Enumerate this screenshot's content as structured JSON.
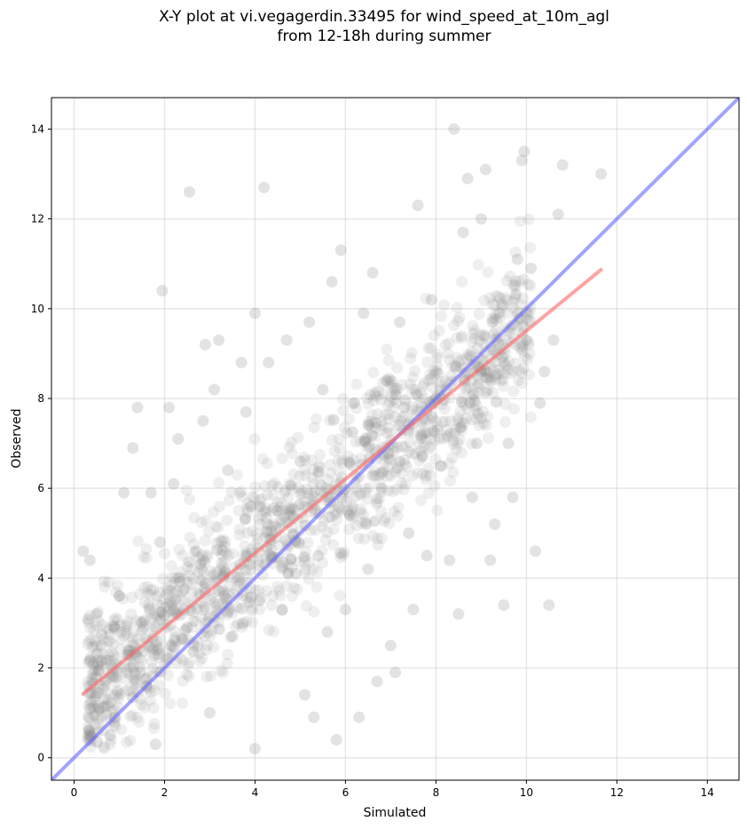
{
  "chart_data": {
    "type": "scatter",
    "title": "X-Y plot at vi.vegagerdin.33495 for wind_speed_at_10m_agl",
    "subtitle": "from 12-18h during summer",
    "xlabel": "Simulated",
    "ylabel": "Observed",
    "xlim": [
      -0.5,
      14.7
    ],
    "ylim": [
      -0.5,
      14.7
    ],
    "xticks": [
      "0",
      "2",
      "4",
      "6",
      "8",
      "10",
      "12",
      "14"
    ],
    "yticks": [
      "0",
      "2",
      "4",
      "6",
      "8",
      "10",
      "12",
      "14"
    ],
    "grid": true,
    "point_color": "#808080",
    "one_to_one_line": {
      "color": "#6666ff",
      "x": [
        -0.5,
        14.7
      ],
      "y": [
        -0.5,
        14.7
      ]
    },
    "regression_line": {
      "color": "#ff6666",
      "x": [
        0.2,
        11.65
      ],
      "y": [
        1.42,
        10.87
      ]
    },
    "points": [
      [
        0.2,
        4.6
      ],
      [
        0.35,
        4.4
      ],
      [
        0.5,
        3.2
      ],
      [
        0.6,
        2.5
      ],
      [
        0.7,
        1.7
      ],
      [
        0.8,
        0.5
      ],
      [
        0.9,
        0.9
      ],
      [
        1.0,
        3.6
      ],
      [
        1.1,
        5.9
      ],
      [
        1.2,
        2.4
      ],
      [
        1.3,
        6.9
      ],
      [
        1.4,
        7.8
      ],
      [
        1.5,
        3.0
      ],
      [
        1.6,
        1.6
      ],
      [
        1.7,
        5.9
      ],
      [
        1.8,
        0.3
      ],
      [
        1.9,
        4.8
      ],
      [
        1.95,
        10.4
      ],
      [
        2.1,
        7.8
      ],
      [
        2.2,
        6.1
      ],
      [
        2.3,
        7.1
      ],
      [
        2.5,
        2.9
      ],
      [
        2.55,
        12.6
      ],
      [
        2.7,
        4.6
      ],
      [
        2.85,
        7.5
      ],
      [
        2.9,
        9.2
      ],
      [
        3.0,
        1.0
      ],
      [
        3.1,
        8.2
      ],
      [
        3.2,
        9.3
      ],
      [
        3.4,
        6.4
      ],
      [
        3.5,
        2.7
      ],
      [
        3.7,
        8.8
      ],
      [
        3.8,
        7.7
      ],
      [
        3.9,
        5.6
      ],
      [
        4.0,
        9.9
      ],
      [
        4.0,
        0.2
      ],
      [
        4.1,
        3.5
      ],
      [
        4.2,
        12.7
      ],
      [
        4.3,
        8.8
      ],
      [
        4.5,
        5.5
      ],
      [
        4.6,
        3.3
      ],
      [
        4.7,
        9.3
      ],
      [
        4.9,
        4.1
      ],
      [
        5.0,
        6.6
      ],
      [
        5.1,
        1.4
      ],
      [
        5.2,
        9.7
      ],
      [
        5.3,
        0.9
      ],
      [
        5.4,
        4.5
      ],
      [
        5.5,
        8.2
      ],
      [
        5.6,
        2.8
      ],
      [
        5.7,
        10.6
      ],
      [
        5.8,
        0.4
      ],
      [
        5.9,
        11.3
      ],
      [
        6.0,
        3.3
      ],
      [
        6.1,
        5.4
      ],
      [
        6.2,
        7.9
      ],
      [
        6.3,
        0.9
      ],
      [
        6.4,
        9.9
      ],
      [
        6.5,
        4.2
      ],
      [
        6.6,
        10.8
      ],
      [
        6.7,
        1.7
      ],
      [
        6.8,
        6.0
      ],
      [
        6.9,
        8.4
      ],
      [
        7.0,
        2.5
      ],
      [
        7.1,
        1.9
      ],
      [
        7.2,
        9.7
      ],
      [
        7.3,
        7.8
      ],
      [
        7.4,
        5.0
      ],
      [
        7.5,
        3.3
      ],
      [
        7.6,
        12.3
      ],
      [
        7.7,
        6.7
      ],
      [
        7.8,
        4.5
      ],
      [
        7.9,
        10.2
      ],
      [
        8.0,
        8.0
      ],
      [
        8.1,
        6.5
      ],
      [
        8.3,
        4.4
      ],
      [
        8.4,
        14.0
      ],
      [
        8.5,
        3.2
      ],
      [
        8.6,
        11.7
      ],
      [
        8.7,
        12.9
      ],
      [
        8.8,
        5.8
      ],
      [
        8.9,
        7.0
      ],
      [
        9.0,
        12.0
      ],
      [
        9.1,
        13.1
      ],
      [
        9.2,
        4.4
      ],
      [
        9.3,
        5.2
      ],
      [
        9.4,
        9.9
      ],
      [
        9.5,
        3.4
      ],
      [
        9.6,
        7.0
      ],
      [
        9.7,
        5.8
      ],
      [
        9.8,
        11.1
      ],
      [
        9.9,
        13.3
      ],
      [
        9.95,
        13.5
      ],
      [
        10.0,
        9.3
      ],
      [
        10.1,
        10.9
      ],
      [
        10.2,
        4.6
      ],
      [
        10.3,
        7.9
      ],
      [
        10.4,
        8.6
      ],
      [
        10.5,
        3.4
      ],
      [
        10.6,
        9.3
      ],
      [
        10.7,
        12.1
      ],
      [
        10.8,
        13.2
      ],
      [
        11.65,
        13.0
      ]
    ]
  }
}
